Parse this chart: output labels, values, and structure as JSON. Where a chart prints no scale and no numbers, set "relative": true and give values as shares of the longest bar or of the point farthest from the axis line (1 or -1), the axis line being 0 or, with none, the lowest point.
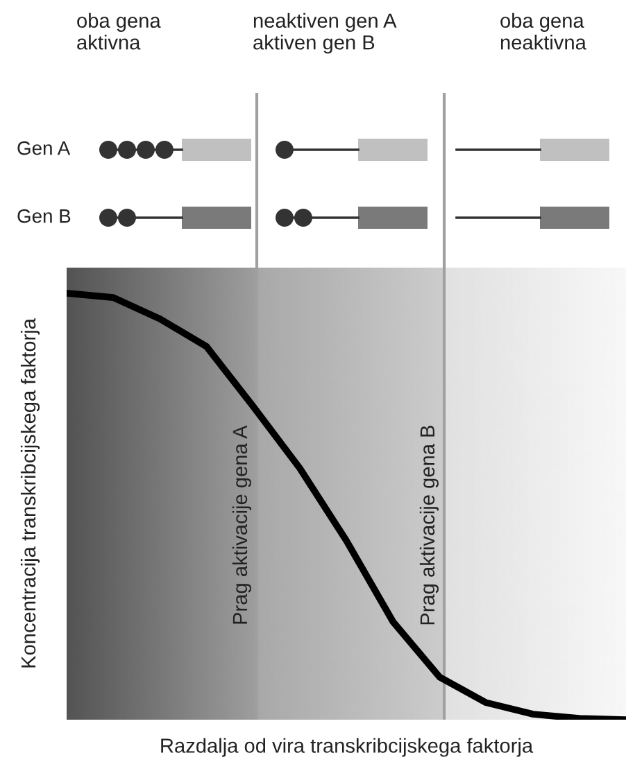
{
  "chart_data": {
    "type": "line",
    "relative": true,
    "marker": "none",
    "line_style": "solid",
    "xlabel": "Razdalja od vira transkribcijskega faktorja",
    "ylabel": "Koncentracija transkribcijskega faktorja",
    "categories": [
      null,
      null,
      null,
      null,
      null,
      null,
      null,
      null,
      null,
      null,
      null,
      null,
      null
    ],
    "series": [
      {
        "color": "#000000",
        "values": [
          1,
          0.99,
          0.94,
          0.875,
          0.735,
          0.59,
          0.42,
          0.23,
          0.1,
          0.04,
          0.013,
          0.003,
          0
        ]
      }
    ],
    "annotations": [
      "oba gena\naktivna",
      "neaktiven gen A\naktiven gen B",
      "oba gena\nneaktivna",
      "Gen A",
      "Gen B",
      "Prag aktivacije gena A",
      "Prag aktivacije gena B"
    ]
  }
}
